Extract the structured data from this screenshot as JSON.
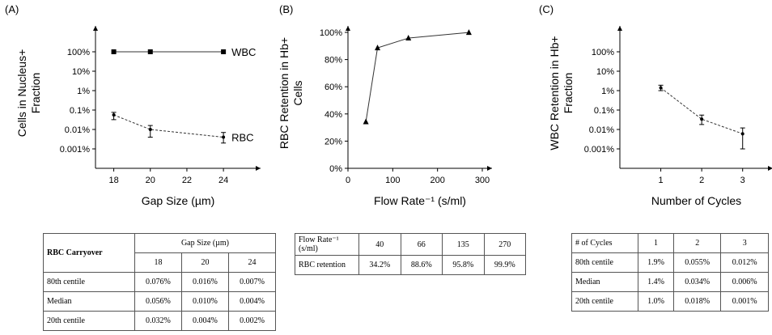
{
  "panels": {
    "a": "(A)",
    "b": "(B)",
    "c": "(C)"
  },
  "chart_data": [
    {
      "type": "line",
      "yscale": "log",
      "ylabel": "Cells in Nucleus+ Fraction",
      "xlabel": "Gap Size (µm)",
      "x_ticks": [
        18,
        20,
        22,
        24
      ],
      "y_ticks": [
        "0.001%",
        "0.01%",
        "0.1%",
        "1%",
        "10%",
        "100%"
      ],
      "xlim": [
        17,
        25.5
      ],
      "ylim_percent": [
        0.0001,
        1000
      ],
      "series": [
        {
          "name": "WBC",
          "marker": "square",
          "x": [
            18,
            20,
            24
          ],
          "y": [
            100,
            100,
            100
          ]
        },
        {
          "name": "RBC",
          "marker": "circle",
          "x": [
            18,
            20,
            24
          ],
          "y": [
            0.056,
            0.01,
            0.004
          ],
          "err_low": [
            0.032,
            0.004,
            0.002
          ],
          "err_high": [
            0.076,
            0.016,
            0.007
          ]
        }
      ]
    },
    {
      "type": "line",
      "ylabel": "RBC Retention in Hb+ Cells",
      "xlabel": "Flow Rate⁻¹ (s/ml)",
      "x_ticks": [
        0,
        100,
        200,
        300
      ],
      "y_ticks": [
        "0%",
        "20%",
        "40%",
        "60%",
        "80%",
        "100%"
      ],
      "xlim": [
        0,
        300
      ],
      "ylim": [
        0,
        100
      ],
      "series": [
        {
          "marker": "triangle",
          "x": [
            40,
            66,
            135,
            270
          ],
          "y": [
            34.2,
            88.6,
            95.8,
            99.9
          ]
        }
      ]
    },
    {
      "type": "line",
      "yscale": "log",
      "ylabel": "WBC Retention in Hb+ Fraction",
      "xlabel": "Number of Cycles",
      "x_ticks": [
        1,
        2,
        3
      ],
      "y_ticks": [
        "0.001%",
        "0.01%",
        "0.1%",
        "1%",
        "10%",
        "100%"
      ],
      "xlim": [
        0,
        3.5
      ],
      "ylim_percent": [
        0.0001,
        1000
      ],
      "series": [
        {
          "marker": "circle",
          "x": [
            1,
            2,
            3
          ],
          "y": [
            1.4,
            0.034,
            0.006
          ],
          "err_low": [
            1.0,
            0.018,
            0.001
          ],
          "err_high": [
            1.9,
            0.055,
            0.012
          ]
        }
      ]
    }
  ],
  "tables": {
    "a": {
      "corner": "RBC Carryover",
      "group_header": "Gap Size (µm)",
      "cols": [
        "18",
        "20",
        "24"
      ],
      "rows": [
        {
          "label": "80th centile",
          "values": [
            "0.076%",
            "0.016%",
            "0.007%"
          ]
        },
        {
          "label": "Median",
          "values": [
            "0.056%",
            "0.010%",
            "0.004%"
          ]
        },
        {
          "label": "20th centile",
          "values": [
            "0.032%",
            "0.004%",
            "0.002%"
          ]
        }
      ]
    },
    "b": {
      "rows": [
        {
          "label": "Flow Rate⁻¹ (s/ml)",
          "values": [
            "40",
            "66",
            "135",
            "270"
          ]
        },
        {
          "label": "RBC retention",
          "values": [
            "34.2%",
            "88.6%",
            "95.8%",
            "99.9%"
          ]
        }
      ]
    },
    "c": {
      "header_label": "# of Cycles",
      "cols": [
        "1",
        "2",
        "3"
      ],
      "rows": [
        {
          "label": "80th centile",
          "values": [
            "1.9%",
            "0.055%",
            "0.012%"
          ]
        },
        {
          "label": "Median",
          "values": [
            "1.4%",
            "0.034%",
            "0.006%"
          ]
        },
        {
          "label": "20th centile",
          "values": [
            "1.0%",
            "0.018%",
            "0.001%"
          ]
        }
      ]
    }
  }
}
